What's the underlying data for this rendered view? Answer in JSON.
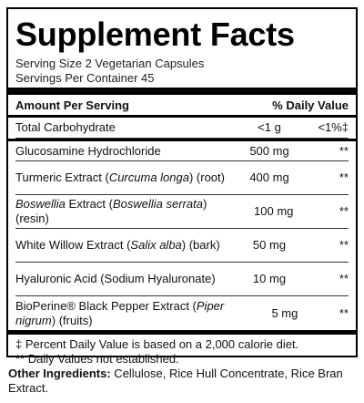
{
  "panel": {
    "title": "Supplement Facts",
    "serving_size": "Serving Size 2 Vegetarian Capsules",
    "servings_per_container": "Servings Per Container 45",
    "header_amount": "Amount Per Serving",
    "header_dv": "% Daily Value"
  },
  "rows": [
    {
      "name": "Total Carbohydrate",
      "amount": "<1 g",
      "dv": "<1%‡"
    },
    {
      "name": "Glucosamine Hydrochloride",
      "amount": "500 mg",
      "dv": "**"
    },
    {
      "name_pre": "Turmeric Extract (",
      "name_italic": "Curcuma longa",
      "name_post": ") (root)",
      "amount": "400 mg",
      "dv": "**"
    },
    {
      "name_italic_a": "Boswellia",
      "name_mid": " Extract (",
      "name_italic_b": "Boswellia serrata",
      "name_post": ") (resin)",
      "amount": "100 mg",
      "dv": "**"
    },
    {
      "name_pre": "White Willow Extract (",
      "name_italic": "Salix alba",
      "name_post": ") (bark)",
      "amount": "50 mg",
      "dv": "**"
    },
    {
      "name": "Hyaluronic Acid (Sodium Hyaluronate)",
      "amount": "10 mg",
      "dv": "**"
    },
    {
      "name_pre": "BioPerine® Black Pepper Extract (",
      "name_italic": "Piper nigrum",
      "name_post": ") (fruits)",
      "amount": "5 mg",
      "dv": "**"
    }
  ],
  "footnotes": {
    "dv_note": "‡ Percent Daily Value is based on a 2,000 calorie diet.",
    "not_established": "** Daily Values not established."
  },
  "other_ingredients": {
    "label": "Other Ingredients:",
    "text": " Cellulose, Rice Hull Concentrate, Rice Bran Extract."
  }
}
